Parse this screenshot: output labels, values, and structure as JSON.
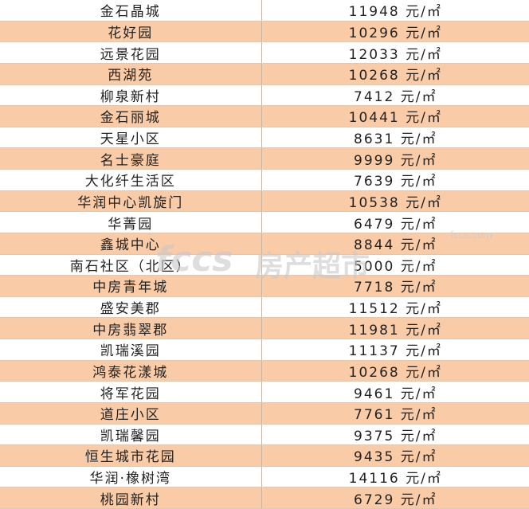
{
  "table": {
    "rows": [
      [
        "金石晶城",
        "11948 元/㎡"
      ],
      [
        "花好园",
        "10296 元/㎡"
      ],
      [
        "远景花园",
        "12033 元/㎡"
      ],
      [
        "西湖苑",
        "10268 元/㎡"
      ],
      [
        "柳泉新村",
        "7412 元/㎡"
      ],
      [
        "金石丽城",
        "10441 元/㎡"
      ],
      [
        "天星小区",
        "8631 元/㎡"
      ],
      [
        "名士豪庭",
        "9999 元/㎡"
      ],
      [
        "大化纤生活区",
        "7639 元/㎡"
      ],
      [
        "华润中心凯旋门",
        "10538 元/㎡"
      ],
      [
        "华菁园",
        "6479 元/㎡"
      ],
      [
        "鑫城中心",
        "8844 元/㎡"
      ],
      [
        "南石社区（北区）",
        "5000 元/㎡"
      ],
      [
        "中房青年城",
        "7718 元/㎡"
      ],
      [
        "盛安美郡",
        "11512 元/㎡"
      ],
      [
        "中房翡翠郡",
        "11981 元/㎡"
      ],
      [
        "凯瑞溪园",
        "11137 元/㎡"
      ],
      [
        "鸿泰花漾城",
        "10268 元/㎡"
      ],
      [
        "将军花园",
        "9461 元/㎡"
      ],
      [
        "道庄小区",
        "7761 元/㎡"
      ],
      [
        "凯瑞馨园",
        "9375 元/㎡"
      ],
      [
        "恒生城市花园",
        "9435 元/㎡"
      ],
      [
        "华润·橡树湾",
        "14116 元/㎡"
      ],
      [
        "桃园新村",
        "6729 元/㎡"
      ]
    ]
  },
  "watermark": {
    "logo": "fccs",
    "text": "房产超市",
    "url": "fccs.com"
  }
}
